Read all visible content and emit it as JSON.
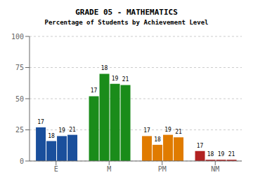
{
  "chart_data": {
    "type": "bar",
    "title": "GRADE 05 - MATHEMATICS",
    "subtitle": "Percentage of Students by Achievement Level",
    "categories": [
      "E",
      "M",
      "PM",
      "NM"
    ],
    "series": [
      {
        "name": "17",
        "values": [
          27,
          52,
          20,
          8
        ]
      },
      {
        "name": "18",
        "values": [
          16,
          70,
          13,
          1
        ]
      },
      {
        "name": "19",
        "values": [
          20,
          62,
          21,
          1
        ]
      },
      {
        "name": "21",
        "values": [
          21,
          61,
          19,
          1
        ]
      }
    ],
    "colors": [
      "#1a4f9c",
      "#1a8c1a",
      "#e07b00",
      "#b22222"
    ],
    "ylim": [
      0,
      100
    ],
    "yticks": [
      0,
      25,
      50,
      75,
      100
    ],
    "grid": true
  }
}
